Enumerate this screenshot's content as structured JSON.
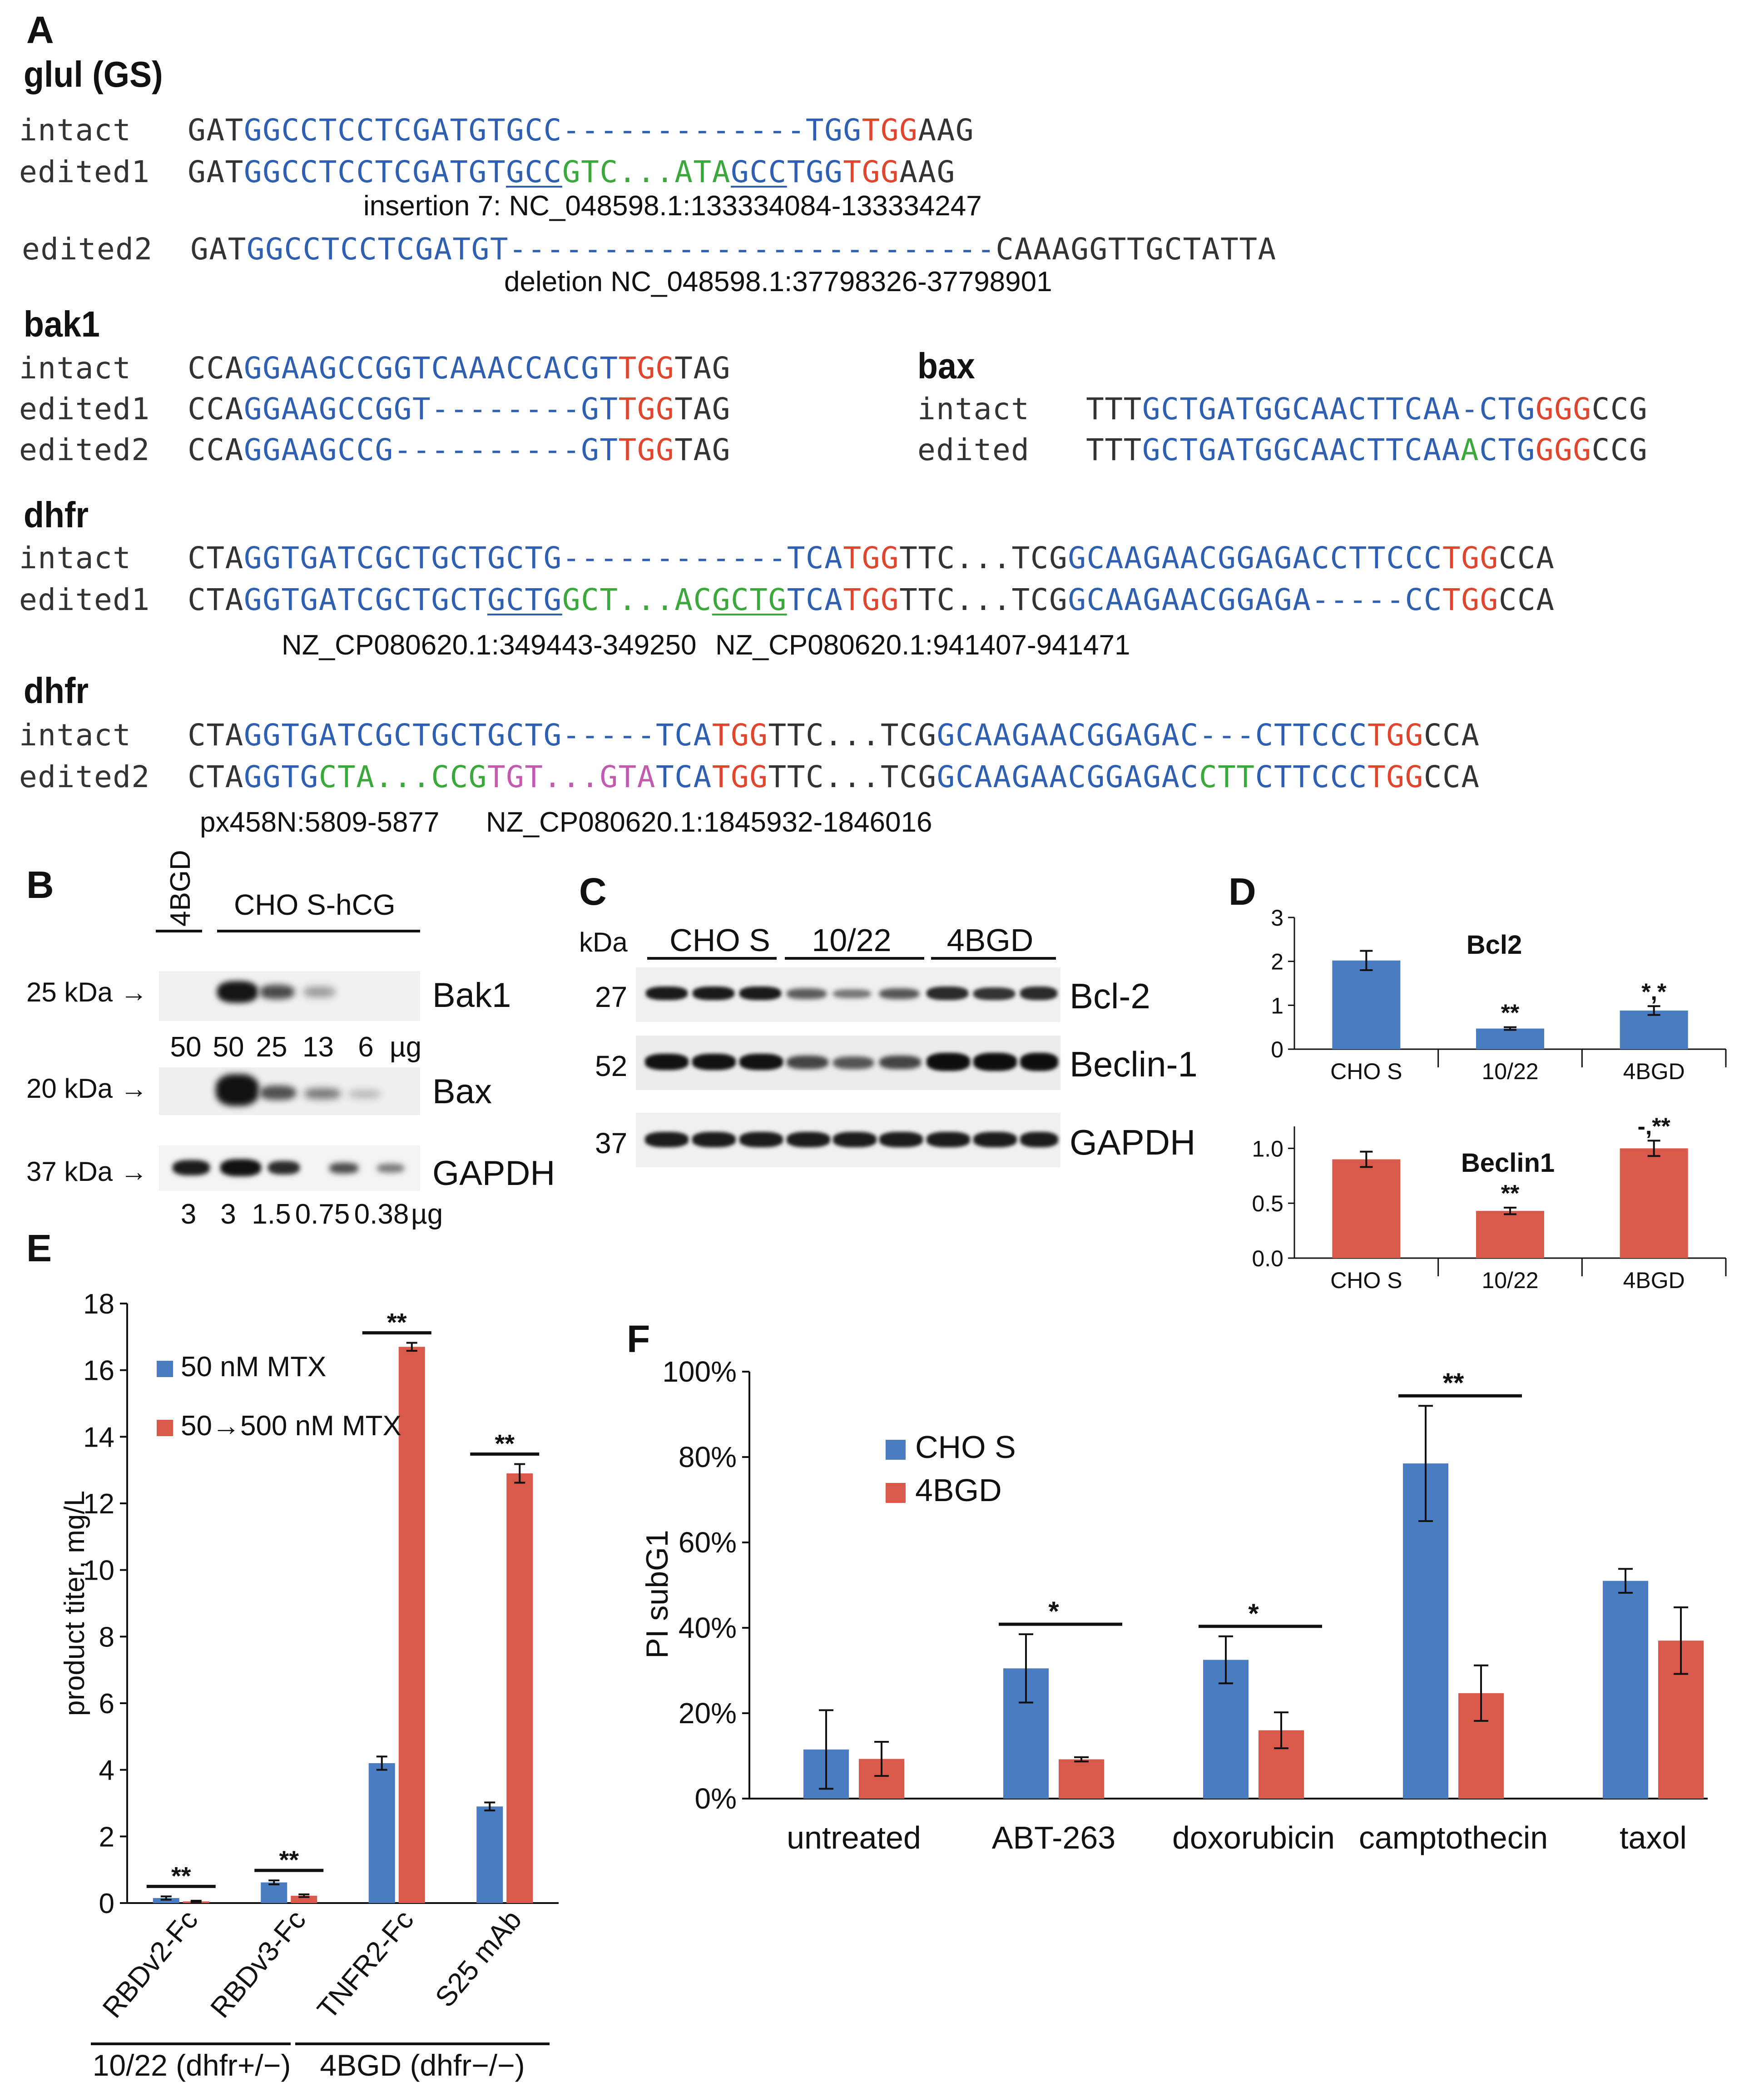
{
  "panelA": {
    "label": "A",
    "glul": {
      "title": "glul (GS)",
      "rows": [
        {
          "label": "intact",
          "segs": [
            [
              "k",
              "GAT"
            ],
            [
              "b",
              "GGCCTCCTCGATGTGCC"
            ],
            [
              "b",
              "-------------"
            ],
            [
              "b",
              "TGG"
            ],
            [
              "r",
              "TGG"
            ],
            [
              "k",
              "AAG"
            ]
          ]
        },
        {
          "label": "edited1",
          "segs": [
            [
              "k",
              "GAT"
            ],
            [
              "b",
              "GGCCTCCTCGATGT"
            ],
            [
              "bu",
              "GCC"
            ],
            [
              "g",
              "GTC...ATA"
            ],
            [
              "bu",
              "GCC"
            ],
            [
              "b",
              "TGG"
            ],
            [
              "r",
              "TGG"
            ],
            [
              "k",
              "AAG"
            ]
          ]
        },
        {
          "label": "edited2",
          "segs": [
            [
              "k",
              "GAT"
            ],
            [
              "b",
              "GGCCTCCTCGATGT"
            ],
            [
              "b",
              "--------------------------"
            ],
            [
              "k",
              "CAAAGGTTGCTATTA"
            ]
          ]
        }
      ],
      "ann1": "insertion 7: NC_048598.1:133334084-133334247",
      "ann2": "deletion NC_048598.1:37798326-37798901"
    },
    "bak1": {
      "title": "bak1",
      "rows": [
        {
          "label": "intact",
          "segs": [
            [
              "k",
              "CCA"
            ],
            [
              "b",
              "GGAAGCCGGTCAAACCACGT"
            ],
            [
              "r",
              "TGG"
            ],
            [
              "k",
              "TAG"
            ]
          ]
        },
        {
          "label": "edited1",
          "segs": [
            [
              "k",
              "CCA"
            ],
            [
              "b",
              "GGAAGCCGGT"
            ],
            [
              "b",
              "--------"
            ],
            [
              "b",
              "GT"
            ],
            [
              "r",
              "TGG"
            ],
            [
              "k",
              "TAG"
            ]
          ]
        },
        {
          "label": "edited2",
          "segs": [
            [
              "k",
              "CCA"
            ],
            [
              "b",
              "GGAAGCCG"
            ],
            [
              "b",
              "----------"
            ],
            [
              "b",
              "GT"
            ],
            [
              "r",
              "TGG"
            ],
            [
              "k",
              "TAG"
            ]
          ]
        }
      ]
    },
    "bax": {
      "title": "bax",
      "rows": [
        {
          "label": "intact",
          "segs": [
            [
              "k",
              "TTT"
            ],
            [
              "b",
              "GCTGATGGCAACTTCAA"
            ],
            [
              "b",
              "-"
            ],
            [
              "b",
              "CTG"
            ],
            [
              "r",
              "GGG"
            ],
            [
              "k",
              "CCG"
            ]
          ]
        },
        {
          "label": "edited",
          "segs": [
            [
              "k",
              "TTT"
            ],
            [
              "b",
              "GCTGATGGCAACTTCAA"
            ],
            [
              "g",
              "A"
            ],
            [
              "b",
              "CTG"
            ],
            [
              "r",
              "GGG"
            ],
            [
              "k",
              "CCG"
            ]
          ]
        }
      ]
    },
    "dhfr1": {
      "title": "dhfr",
      "rows": [
        {
          "label": "intact",
          "segs": [
            [
              "k",
              "CTA"
            ],
            [
              "b",
              "GGTGATCGCTGCTGCTG"
            ],
            [
              "b",
              "------------"
            ],
            [
              "b",
              "TCA"
            ],
            [
              "r",
              "TGG"
            ],
            [
              "k",
              "TTC...TCG"
            ],
            [
              "b",
              "GCAAGAACGGAGACCTTCCC"
            ],
            [
              "r",
              "TGG"
            ],
            [
              "k",
              "CCA"
            ]
          ]
        },
        {
          "label": "edited1",
          "segs": [
            [
              "k",
              "CTA"
            ],
            [
              "b",
              "GGTGATCGCTGCT"
            ],
            [
              "bu",
              "GCTG"
            ],
            [
              "g",
              "GCT...AC"
            ],
            [
              "gu",
              "GCTG"
            ],
            [
              "b",
              "TCA"
            ],
            [
              "r",
              "TGG"
            ],
            [
              "k",
              "TTC...TCG"
            ],
            [
              "b",
              "GCAAGAACGGAGA"
            ],
            [
              "b",
              "-----"
            ],
            [
              "b",
              "CC"
            ],
            [
              "r",
              "TGG"
            ],
            [
              "k",
              "CCA"
            ]
          ]
        }
      ],
      "ann1": "NZ_CP080620.1:349443-349250",
      "ann2": "NZ_CP080620.1:941407-941471"
    },
    "dhfr2": {
      "title": "dhfr",
      "rows": [
        {
          "label": "intact",
          "segs": [
            [
              "k",
              "CTA"
            ],
            [
              "b",
              "GGTGATCGCTGCTGCTG"
            ],
            [
              "b",
              "-----"
            ],
            [
              "b",
              "TCA"
            ],
            [
              "r",
              "TGG"
            ],
            [
              "k",
              "TTC...TCG"
            ],
            [
              "b",
              "GCAAGAACGGAGAC"
            ],
            [
              "b",
              "---"
            ],
            [
              "b",
              "CTTCCC"
            ],
            [
              "r",
              "TGG"
            ],
            [
              "k",
              "CCA"
            ]
          ]
        },
        {
          "label": "edited2",
          "segs": [
            [
              "k",
              "CTA"
            ],
            [
              "b",
              "GGTG"
            ],
            [
              "g",
              "CTA...CCG"
            ],
            [
              "m",
              "TGT...GTA"
            ],
            [
              "b",
              "TCA"
            ],
            [
              "r",
              "TGG"
            ],
            [
              "k",
              "TTC...TCG"
            ],
            [
              "b",
              "GCAAGAACGGAGAC"
            ],
            [
              "g",
              "CTT"
            ],
            [
              "b",
              "CTTCCC"
            ],
            [
              "r",
              "TGG"
            ],
            [
              "k",
              "CCA"
            ]
          ]
        }
      ],
      "ann1": "px458N:5809-5877",
      "ann2": "NZ_CP080620.1:1845932-1846016"
    }
  },
  "panelB": {
    "label": "B",
    "lane_4bgd": "4BGD",
    "group_chos": "CHO S-hCG",
    "bak1_marker": "25 kDa →",
    "bax_marker": "20 kDa →",
    "gapdh_marker": "37 kDa →",
    "bak1_label": "Bak1",
    "bax_label": "Bax",
    "gapdh_label": "GAPDH",
    "loads1": [
      "50",
      "50",
      "25",
      "13",
      "6"
    ],
    "unit1": "µg",
    "loads2": [
      "3",
      "3",
      "1.5",
      "0.75",
      "0.38"
    ],
    "unit2": "µg"
  },
  "panelC": {
    "label": "C",
    "kda": "kDa",
    "groups": [
      "CHO S",
      "10/22",
      "4BGD"
    ],
    "markers": [
      "27",
      "52",
      "37"
    ],
    "proteins": [
      "Bcl-2",
      "Beclin-1",
      "GAPDH"
    ]
  },
  "panelD": {
    "label": "D",
    "bcl2": {
      "title": "Bcl2",
      "categories": [
        "CHO S",
        "10/22",
        "4BGD"
      ],
      "values": [
        2.02,
        0.47,
        0.88
      ],
      "errors": [
        0.22,
        0.03,
        0.1
      ],
      "sig": [
        "",
        "**",
        "*,*"
      ],
      "ylim": [
        0,
        3
      ],
      "ticks": [
        "0",
        "1",
        "2",
        "3"
      ],
      "color": "#4a7cc2"
    },
    "beclin1": {
      "title": "Beclin1",
      "categories": [
        "CHO S",
        "10/22",
        "4BGD"
      ],
      "values": [
        0.9,
        0.43,
        1.0
      ],
      "errors": [
        0.07,
        0.03,
        0.07
      ],
      "sig": [
        "",
        "**",
        "-,**"
      ],
      "ylim": [
        0,
        1.2
      ],
      "ticks": [
        "0.0",
        "0.5",
        "1.0"
      ],
      "color": "#d9594a"
    }
  },
  "chart_data": [
    {
      "type": "bar",
      "panel": "E",
      "title": "",
      "ylabel": "product titer, mg/L",
      "ylim": [
        0,
        18
      ],
      "yticks": [
        "0",
        "2",
        "4",
        "6",
        "8",
        "10",
        "12",
        "14",
        "16",
        "18"
      ],
      "categories": [
        "RBDv2-Fc",
        "RBDv3-Fc",
        "TNFR2-Fc",
        "S25 mAb"
      ],
      "series": [
        {
          "name": "50 nM MTX",
          "values": [
            0.15,
            0.62,
            4.2,
            2.9
          ],
          "errors": [
            0.05,
            0.06,
            0.2,
            0.12
          ],
          "color": "#4a7cc2"
        },
        {
          "name": "50→500 nM MTX",
          "values": [
            0.05,
            0.22,
            16.7,
            12.9
          ],
          "errors": [
            0.02,
            0.04,
            0.12,
            0.28
          ],
          "color": "#d9594a"
        }
      ],
      "significance": [
        "**",
        "**",
        "**",
        "**"
      ],
      "groups": [
        "10/22 (dhfr+/−)",
        "4BGD (dhfr−/−)"
      ]
    },
    {
      "type": "bar",
      "panel": "F",
      "title": "",
      "ylabel": "PI subG1",
      "ylim": [
        0,
        100
      ],
      "yticks": [
        "0%",
        "20%",
        "40%",
        "60%",
        "80%",
        "100%"
      ],
      "categories": [
        "untreated",
        "ABT-263",
        "doxorubicin",
        "camptothecin",
        "taxol"
      ],
      "series": [
        {
          "name": "CHO S",
          "values": [
            11.5,
            30.5,
            32.5,
            78.5,
            51
          ],
          "errors": [
            9.2,
            8,
            5.5,
            13.5,
            2.8
          ],
          "color": "#4a7cc2"
        },
        {
          "name": "4BGD",
          "values": [
            9.3,
            9.2,
            16,
            24.7,
            37
          ],
          "errors": [
            4,
            0.5,
            4.2,
            6.5,
            7.8
          ],
          "color": "#d9594a"
        }
      ],
      "significance": [
        "",
        "*",
        "*",
        "**",
        ""
      ]
    }
  ]
}
